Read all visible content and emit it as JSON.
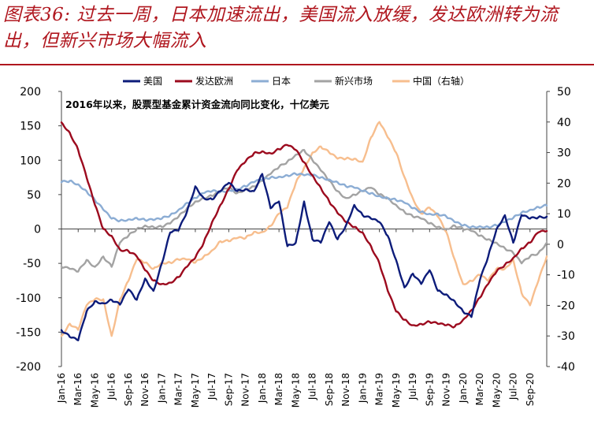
{
  "header": {
    "title": "图表36: 过去一周，日本加速流出，美国流入放缓，发达欧洲转为流出，但新兴市场大幅流入"
  },
  "chart_data": {
    "type": "line",
    "subtitle": "2016年以来，股票型基金累计资金流向同比变化，十亿美元",
    "xlabel": "",
    "ylabel": "",
    "ylim": [
      -200,
      200
    ],
    "y2lim": [
      -40,
      50
    ],
    "y_ticks": [
      -200,
      -150,
      -100,
      -50,
      0,
      50,
      100,
      150,
      200
    ],
    "y2_ticks": [
      -40,
      -30,
      -20,
      -10,
      0,
      10,
      20,
      30,
      40,
      50
    ],
    "x_tick_labels": [
      "Jan-16",
      "Mar-16",
      "May-16",
      "Jul-16",
      "Sep-16",
      "Nov-16",
      "Jan-17",
      "Mar-17",
      "May-17",
      "Jul-17",
      "Sep-17",
      "Nov-17",
      "Jan-18",
      "Mar-18",
      "May-18",
      "Jul-18",
      "Sep-18",
      "Nov-18",
      "Jan-19",
      "Mar-19",
      "May-19",
      "Jul-19",
      "Sep-19",
      "Nov-19",
      "Jan-20",
      "Mar-20",
      "May-20",
      "Jul-20",
      "Sep-20"
    ],
    "x_months_total": 58,
    "series": [
      {
        "name": "美国",
        "axis": "left",
        "color": "#0d1c7a",
        "width": 2.4,
        "points": [
          [
            0,
            -147
          ],
          [
            1,
            -157
          ],
          [
            2,
            -162
          ],
          [
            3,
            -120
          ],
          [
            4,
            -105
          ],
          [
            5,
            -108
          ],
          [
            6,
            -103
          ],
          [
            7,
            -110
          ],
          [
            8,
            -88
          ],
          [
            9,
            -103
          ],
          [
            10,
            -72
          ],
          [
            11,
            -90
          ],
          [
            12,
            -50
          ],
          [
            13,
            -5
          ],
          [
            14,
            -2
          ],
          [
            15,
            25
          ],
          [
            16,
            62
          ],
          [
            17,
            45
          ],
          [
            18,
            43
          ],
          [
            19,
            55
          ],
          [
            20,
            67
          ],
          [
            21,
            55
          ],
          [
            22,
            58
          ],
          [
            23,
            55
          ],
          [
            24,
            80
          ],
          [
            25,
            30
          ],
          [
            26,
            40
          ],
          [
            27,
            -25
          ],
          [
            28,
            -20
          ],
          [
            29,
            40
          ],
          [
            30,
            -15
          ],
          [
            31,
            -20
          ],
          [
            32,
            10
          ],
          [
            33,
            -15
          ],
          [
            34,
            5
          ],
          [
            35,
            35
          ],
          [
            36,
            20
          ],
          [
            37,
            15
          ],
          [
            38,
            10
          ],
          [
            39,
            -10
          ],
          [
            40,
            -45
          ],
          [
            41,
            -85
          ],
          [
            42,
            -65
          ],
          [
            43,
            -80
          ],
          [
            44,
            -60
          ],
          [
            45,
            -90
          ],
          [
            46,
            -95
          ],
          [
            47,
            -105
          ],
          [
            48,
            -120
          ],
          [
            49,
            -128
          ],
          [
            50,
            -75
          ],
          [
            51,
            -40
          ],
          [
            52,
            0
          ],
          [
            53,
            20
          ],
          [
            54,
            -20
          ],
          [
            55,
            20
          ],
          [
            56,
            15
          ],
          [
            57,
            17
          ],
          [
            58,
            18
          ]
        ]
      },
      {
        "name": "发达欧洲",
        "axis": "left",
        "color": "#9c0a1e",
        "width": 2.4,
        "points": [
          [
            0,
            155
          ],
          [
            1,
            140
          ],
          [
            2,
            115
          ],
          [
            3,
            75
          ],
          [
            4,
            35
          ],
          [
            5,
            0
          ],
          [
            6,
            -10
          ],
          [
            7,
            -30
          ],
          [
            8,
            -32
          ],
          [
            9,
            -40
          ],
          [
            10,
            -60
          ],
          [
            11,
            -75
          ],
          [
            12,
            -80
          ],
          [
            13,
            -78
          ],
          [
            14,
            -70
          ],
          [
            15,
            -55
          ],
          [
            16,
            -42
          ],
          [
            17,
            -20
          ],
          [
            18,
            10
          ],
          [
            19,
            35
          ],
          [
            20,
            58
          ],
          [
            21,
            85
          ],
          [
            22,
            98
          ],
          [
            23,
            110
          ],
          [
            24,
            113
          ],
          [
            25,
            110
          ],
          [
            26,
            116
          ],
          [
            27,
            122
          ],
          [
            28,
            115
          ],
          [
            29,
            97
          ],
          [
            30,
            78
          ],
          [
            31,
            60
          ],
          [
            32,
            40
          ],
          [
            33,
            23
          ],
          [
            34,
            10
          ],
          [
            35,
            3
          ],
          [
            36,
            -5
          ],
          [
            37,
            -25
          ],
          [
            38,
            -50
          ],
          [
            39,
            -90
          ],
          [
            40,
            -120
          ],
          [
            41,
            -132
          ],
          [
            42,
            -140
          ],
          [
            43,
            -138
          ],
          [
            44,
            -135
          ],
          [
            45,
            -138
          ],
          [
            46,
            -140
          ],
          [
            47,
            -142
          ],
          [
            48,
            -132
          ],
          [
            49,
            -118
          ],
          [
            50,
            -100
          ],
          [
            51,
            -80
          ],
          [
            52,
            -62
          ],
          [
            53,
            -52
          ],
          [
            54,
            -42
          ],
          [
            55,
            -28
          ],
          [
            56,
            -20
          ],
          [
            57,
            -5
          ],
          [
            58,
            -3
          ]
        ]
      },
      {
        "name": "日本",
        "axis": "left",
        "color": "#8cadd4",
        "width": 2.4,
        "points": [
          [
            0,
            68
          ],
          [
            1,
            70
          ],
          [
            2,
            65
          ],
          [
            3,
            55
          ],
          [
            4,
            42
          ],
          [
            5,
            28
          ],
          [
            6,
            15
          ],
          [
            7,
            12
          ],
          [
            8,
            14
          ],
          [
            9,
            16
          ],
          [
            10,
            13
          ],
          [
            11,
            13
          ],
          [
            12,
            15
          ],
          [
            13,
            20
          ],
          [
            14,
            28
          ],
          [
            15,
            38
          ],
          [
            16,
            45
          ],
          [
            17,
            52
          ],
          [
            18,
            55
          ],
          [
            19,
            54
          ],
          [
            20,
            56
          ],
          [
            21,
            58
          ],
          [
            22,
            62
          ],
          [
            23,
            68
          ],
          [
            24,
            72
          ],
          [
            25,
            75
          ],
          [
            26,
            76
          ],
          [
            27,
            78
          ],
          [
            28,
            80
          ],
          [
            29,
            78
          ],
          [
            30,
            78
          ],
          [
            31,
            75
          ],
          [
            32,
            72
          ],
          [
            33,
            68
          ],
          [
            34,
            62
          ],
          [
            35,
            60
          ],
          [
            36,
            55
          ],
          [
            37,
            52
          ],
          [
            38,
            48
          ],
          [
            39,
            45
          ],
          [
            40,
            42
          ],
          [
            41,
            38
          ],
          [
            42,
            30
          ],
          [
            43,
            25
          ],
          [
            44,
            22
          ],
          [
            45,
            22
          ],
          [
            46,
            18
          ],
          [
            47,
            10
          ],
          [
            48,
            5
          ],
          [
            49,
            3
          ],
          [
            50,
            4
          ],
          [
            51,
            3
          ],
          [
            52,
            5
          ],
          [
            53,
            10
          ],
          [
            54,
            16
          ],
          [
            55,
            24
          ],
          [
            56,
            28
          ],
          [
            57,
            32
          ],
          [
            58,
            34
          ]
        ]
      },
      {
        "name": "新兴市场",
        "axis": "left",
        "color": "#a3a3a3",
        "width": 2.4,
        "points": [
          [
            0,
            -55
          ],
          [
            1,
            -58
          ],
          [
            2,
            -62
          ],
          [
            3,
            -45
          ],
          [
            4,
            -55
          ],
          [
            5,
            -40
          ],
          [
            6,
            -55
          ],
          [
            7,
            -20
          ],
          [
            8,
            -10
          ],
          [
            9,
            0
          ],
          [
            10,
            5
          ],
          [
            11,
            3
          ],
          [
            12,
            3
          ],
          [
            13,
            8
          ],
          [
            14,
            18
          ],
          [
            15,
            30
          ],
          [
            16,
            40
          ],
          [
            17,
            45
          ],
          [
            18,
            48
          ],
          [
            19,
            55
          ],
          [
            20,
            60
          ],
          [
            21,
            52
          ],
          [
            22,
            58
          ],
          [
            23,
            62
          ],
          [
            24,
            70
          ],
          [
            25,
            80
          ],
          [
            26,
            90
          ],
          [
            27,
            98
          ],
          [
            28,
            108
          ],
          [
            29,
            115
          ],
          [
            30,
            100
          ],
          [
            31,
            85
          ],
          [
            32,
            70
          ],
          [
            33,
            55
          ],
          [
            34,
            45
          ],
          [
            35,
            50
          ],
          [
            36,
            55
          ],
          [
            37,
            60
          ],
          [
            38,
            50
          ],
          [
            39,
            45
          ],
          [
            40,
            35
          ],
          [
            41,
            25
          ],
          [
            42,
            18
          ],
          [
            43,
            15
          ],
          [
            44,
            8
          ],
          [
            45,
            3
          ],
          [
            46,
            0
          ],
          [
            47,
            5
          ],
          [
            48,
            0
          ],
          [
            49,
            -3
          ],
          [
            50,
            -10
          ],
          [
            51,
            -15
          ],
          [
            52,
            -20
          ],
          [
            53,
            -28
          ],
          [
            54,
            -35
          ],
          [
            55,
            -50
          ],
          [
            56,
            -40
          ],
          [
            57,
            -35
          ],
          [
            58,
            -20
          ]
        ]
      },
      {
        "name": "中国（右轴）",
        "axis": "right",
        "color": "#f7be8e",
        "width": 2.4,
        "points": [
          [
            0,
            -30
          ],
          [
            1,
            -26
          ],
          [
            2,
            -28
          ],
          [
            3,
            -20
          ],
          [
            4,
            -18
          ],
          [
            5,
            -18
          ],
          [
            6,
            -30
          ],
          [
            7,
            -18
          ],
          [
            8,
            -12
          ],
          [
            9,
            -5
          ],
          [
            10,
            -6
          ],
          [
            11,
            -8
          ],
          [
            12,
            -6
          ],
          [
            13,
            -6
          ],
          [
            14,
            -5
          ],
          [
            15,
            -5
          ],
          [
            16,
            -6
          ],
          [
            17,
            -4
          ],
          [
            18,
            -2
          ],
          [
            19,
            1
          ],
          [
            20,
            1
          ],
          [
            21,
            2
          ],
          [
            22,
            2
          ],
          [
            23,
            4
          ],
          [
            24,
            4
          ],
          [
            25,
            6
          ],
          [
            26,
            10
          ],
          [
            27,
            12
          ],
          [
            28,
            20
          ],
          [
            29,
            25
          ],
          [
            30,
            30
          ],
          [
            31,
            32
          ],
          [
            32,
            30
          ],
          [
            33,
            28
          ],
          [
            34,
            28
          ],
          [
            35,
            28
          ],
          [
            36,
            27
          ],
          [
            37,
            35
          ],
          [
            38,
            40
          ],
          [
            39,
            35
          ],
          [
            40,
            30
          ],
          [
            41,
            22
          ],
          [
            42,
            15
          ],
          [
            43,
            10
          ],
          [
            44,
            12
          ],
          [
            45,
            9
          ],
          [
            46,
            4
          ],
          [
            47,
            -5
          ],
          [
            48,
            -13
          ],
          [
            49,
            -12
          ],
          [
            50,
            -10
          ],
          [
            51,
            -12
          ],
          [
            52,
            -8
          ],
          [
            53,
            -8
          ],
          [
            54,
            -5
          ],
          [
            55,
            -16
          ],
          [
            56,
            -20
          ],
          [
            57,
            -12
          ],
          [
            58,
            -4
          ]
        ]
      }
    ]
  }
}
